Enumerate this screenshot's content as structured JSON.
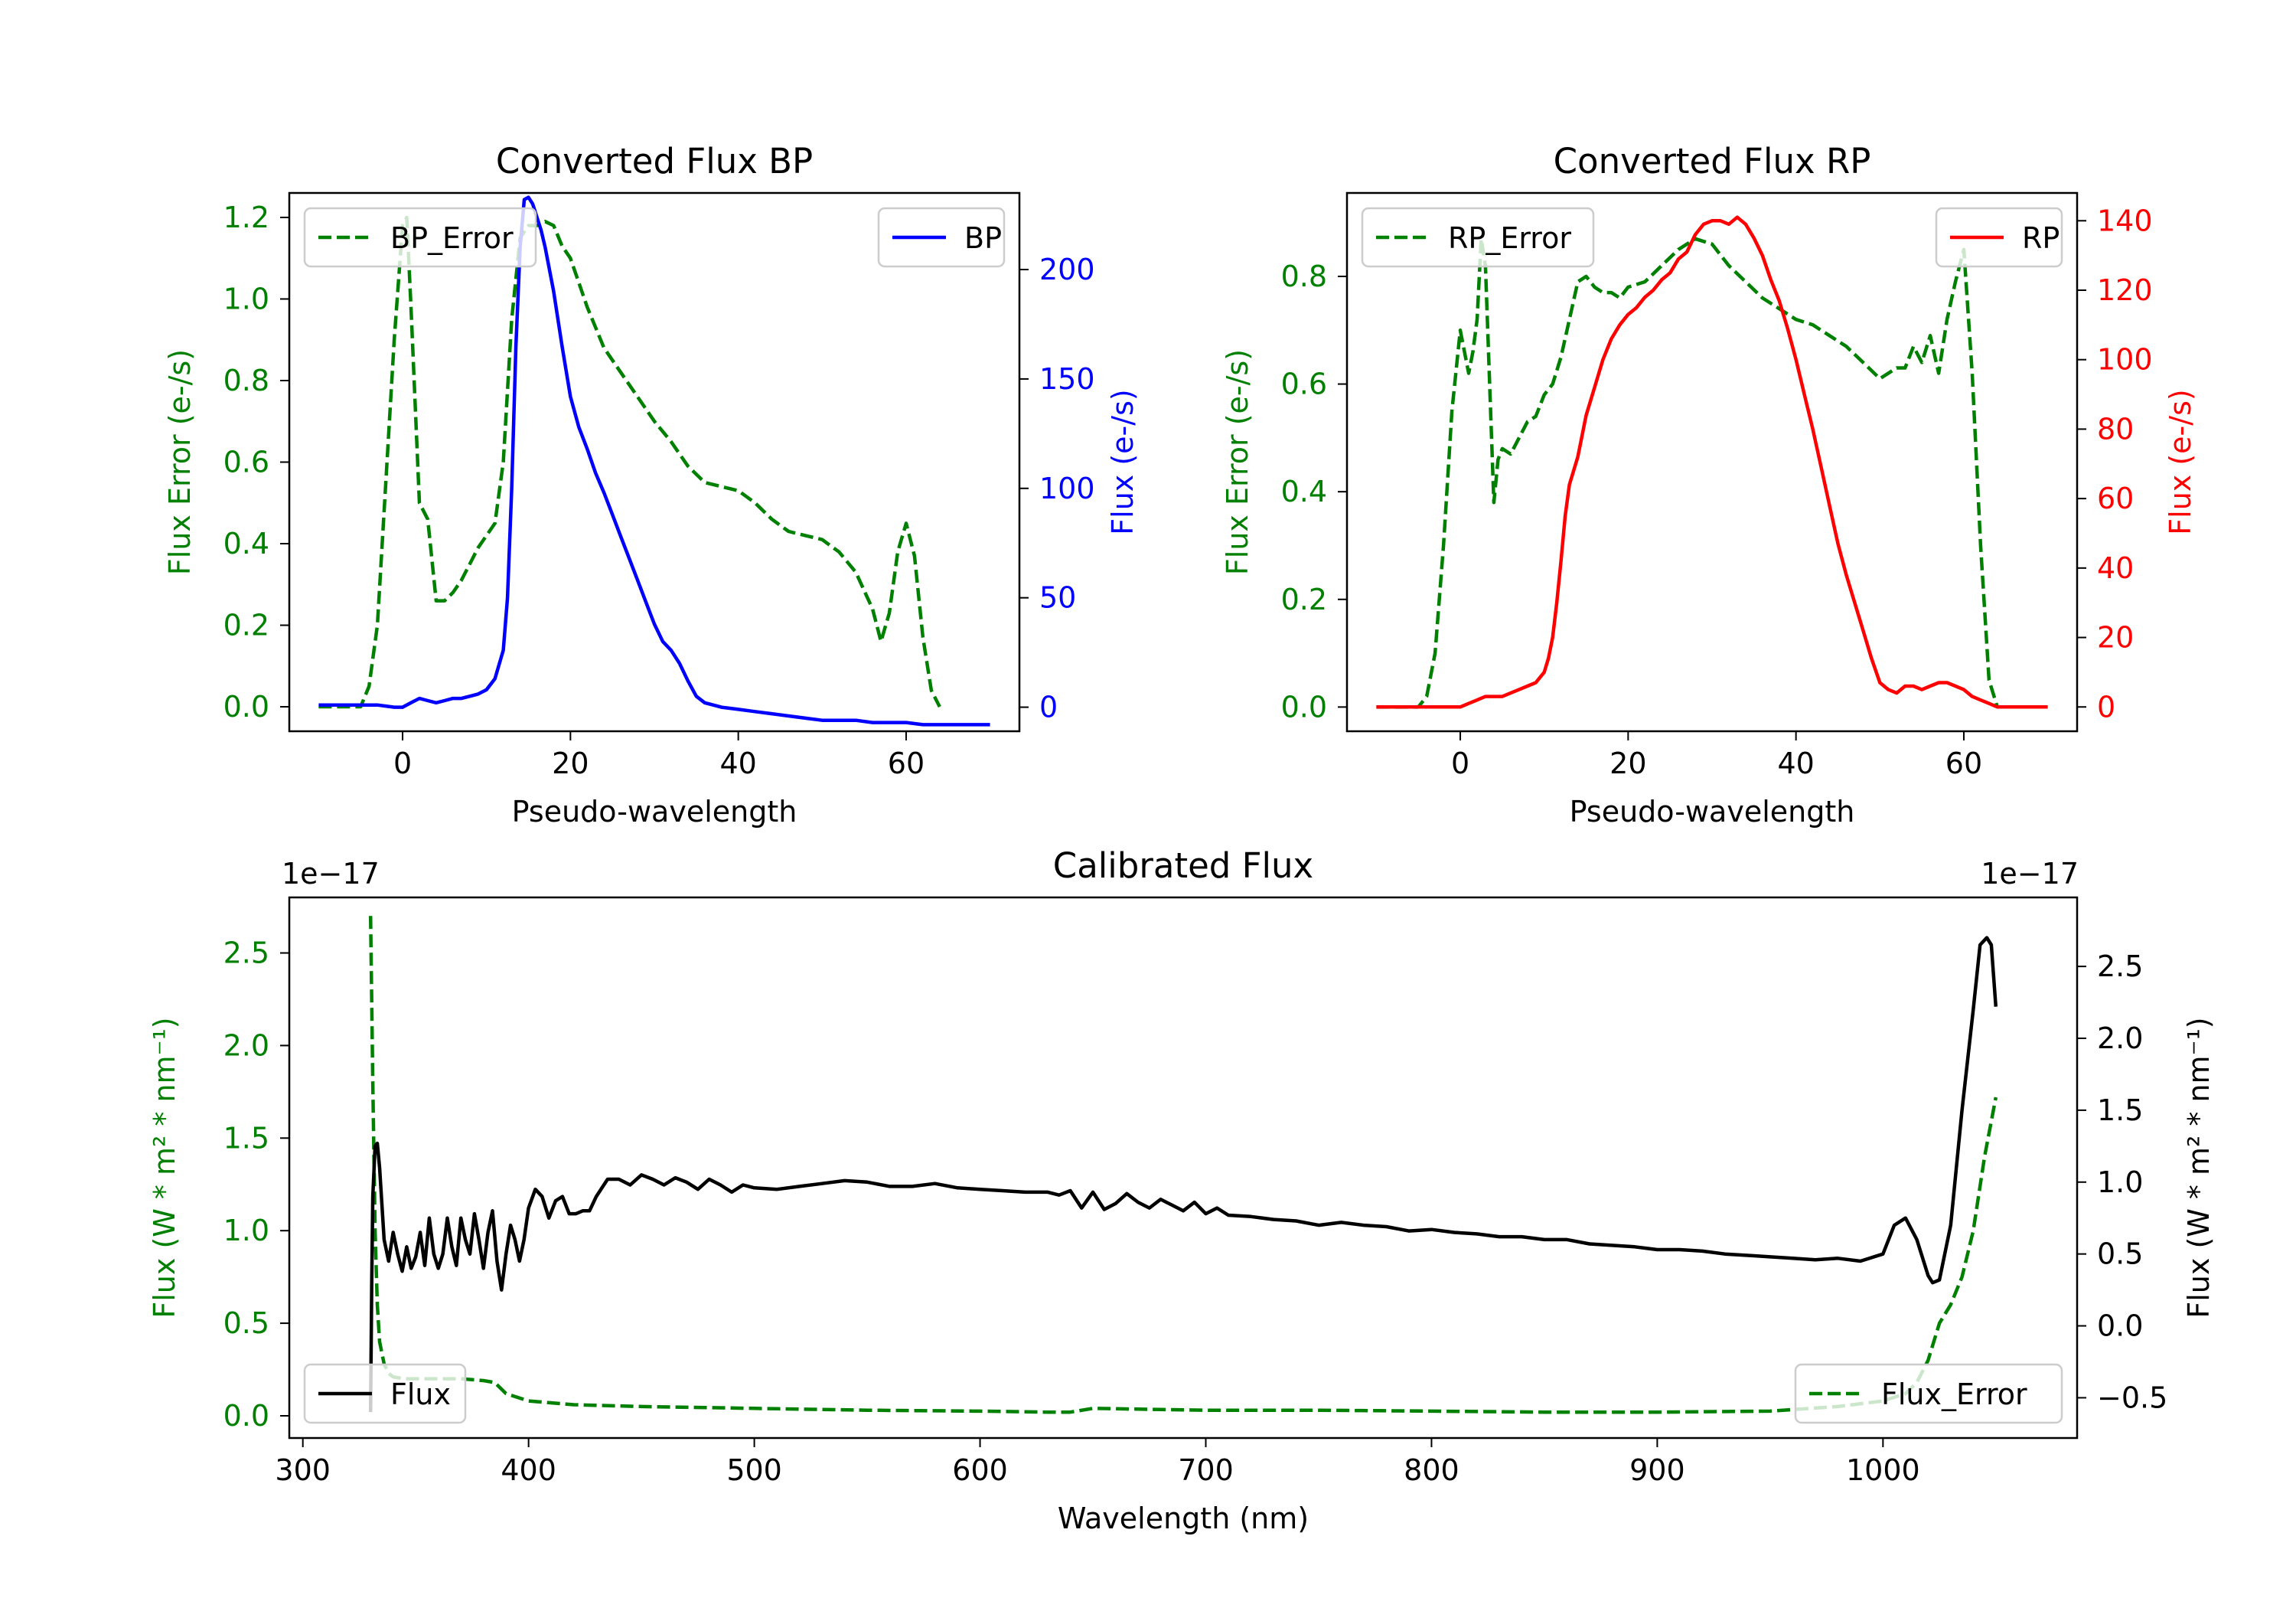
{
  "colors": {
    "green": "#008000",
    "blue": "#0000ff",
    "red": "#ff0000",
    "black": "#000000"
  },
  "chart_data": [
    {
      "id": "bp",
      "type": "line",
      "title": "Converted Flux BP",
      "xlabel": "Pseudo-wavelength",
      "xlim": [
        -13.5,
        73.5
      ],
      "xticks": [
        0,
        20,
        40,
        60
      ],
      "left_axis": {
        "label": "Flux Error (e-/s)",
        "color": "#008000",
        "ylim": [
          -0.06,
          1.26
        ],
        "ticks": [
          0.0,
          0.2,
          0.4,
          0.6,
          0.8,
          1.0,
          1.2
        ],
        "tick_labels": [
          "0.0",
          "0.2",
          "0.4",
          "0.6",
          "0.8",
          "1.0",
          "1.2"
        ]
      },
      "right_axis": {
        "label": "Flux (e-/s)",
        "color": "#0000ff",
        "ylim": [
          -11,
          235
        ],
        "ticks": [
          0,
          50,
          100,
          150,
          200
        ],
        "tick_labels": [
          "0",
          "50",
          "100",
          "150",
          "200"
        ]
      },
      "series": [
        {
          "name": "BP_Error",
          "axis": "left",
          "dashed": true,
          "color": "#008000",
          "x": [
            -10,
            -5,
            -4,
            -3,
            -2,
            -1,
            0,
            0.5,
            1,
            2,
            3,
            4,
            5,
            6,
            7,
            8,
            9,
            10,
            11,
            12,
            13,
            14,
            15,
            16,
            17,
            18,
            19,
            20,
            22,
            24,
            26,
            28,
            30,
            32,
            34,
            36,
            38,
            40,
            42,
            44,
            46,
            48,
            50,
            52,
            54,
            56,
            57,
            58,
            59,
            60,
            61,
            62,
            63,
            64
          ],
          "y": [
            0.0,
            0.0,
            0.05,
            0.2,
            0.55,
            0.9,
            1.18,
            1.2,
            0.98,
            0.5,
            0.46,
            0.26,
            0.26,
            0.28,
            0.31,
            0.35,
            0.39,
            0.42,
            0.45,
            0.6,
            0.95,
            1.15,
            1.18,
            1.18,
            1.19,
            1.18,
            1.13,
            1.1,
            0.98,
            0.88,
            0.82,
            0.76,
            0.7,
            0.65,
            0.59,
            0.55,
            0.54,
            0.53,
            0.5,
            0.46,
            0.43,
            0.42,
            0.41,
            0.38,
            0.33,
            0.24,
            0.16,
            0.23,
            0.38,
            0.45,
            0.37,
            0.17,
            0.04,
            0.0
          ]
        },
        {
          "name": "BP",
          "axis": "right",
          "dashed": false,
          "color": "#0000ff",
          "x": [
            -10,
            -6,
            -3,
            -1,
            0,
            1,
            2,
            3,
            4,
            5,
            6,
            7,
            8,
            9,
            10,
            11,
            12,
            12.5,
            13,
            13.5,
            14,
            14.5,
            15,
            15.5,
            16,
            16.5,
            17,
            18,
            19,
            20,
            21,
            22,
            23,
            24,
            25,
            26,
            27,
            28,
            29,
            30,
            31,
            32,
            33,
            34,
            35,
            36,
            37,
            38,
            40,
            42,
            44,
            46,
            48,
            50,
            52,
            54,
            56,
            58,
            60,
            62,
            64,
            66,
            68,
            70
          ],
          "y": [
            1,
            1,
            1,
            0,
            0,
            2,
            4,
            3,
            2,
            3,
            4,
            4,
            5,
            6,
            8,
            13,
            26,
            50,
            100,
            165,
            210,
            232,
            233,
            230,
            224,
            218,
            210,
            190,
            165,
            142,
            128,
            118,
            107,
            98,
            88,
            78,
            68,
            58,
            48,
            38,
            30,
            26,
            20,
            12,
            5,
            2,
            1,
            0,
            -1,
            -2,
            -3,
            -4,
            -5,
            -6,
            -6,
            -6,
            -7,
            -7,
            -7,
            -8,
            -8,
            -8,
            -8,
            -8
          ]
        }
      ],
      "legends": [
        {
          "position": "upper left",
          "entries": [
            "BP_Error"
          ]
        },
        {
          "position": "upper right",
          "entries": [
            "BP"
          ]
        }
      ]
    },
    {
      "id": "rp",
      "type": "line",
      "title": "Converted Flux RP",
      "xlabel": "Pseudo-wavelength",
      "xlim": [
        -13.5,
        73.5
      ],
      "xticks": [
        0,
        20,
        40,
        60
      ],
      "left_axis": {
        "label": "Flux Error (e-/s)",
        "color": "#008000",
        "ylim": [
          -0.045,
          0.955
        ],
        "ticks": [
          0.0,
          0.2,
          0.4,
          0.6,
          0.8
        ],
        "tick_labels": [
          "0.0",
          "0.2",
          "0.4",
          "0.6",
          "0.8"
        ]
      },
      "right_axis": {
        "label": "Flux (e-/s)",
        "color": "#ff0000",
        "ylim": [
          -7,
          148
        ],
        "ticks": [
          0,
          20,
          40,
          60,
          80,
          100,
          120,
          140
        ],
        "tick_labels": [
          "0",
          "20",
          "40",
          "60",
          "80",
          "100",
          "120",
          "140"
        ]
      },
      "series": [
        {
          "name": "RP_Error",
          "axis": "left",
          "dashed": true,
          "color": "#008000",
          "x": [
            -10,
            -5,
            -4,
            -3,
            -2,
            -1,
            0,
            0.5,
            1,
            1.5,
            2,
            2.5,
            3,
            3.5,
            4,
            4.5,
            5,
            6,
            7,
            8,
            9,
            10,
            11,
            12,
            13,
            14,
            15,
            16,
            17,
            18,
            19,
            20,
            22,
            24,
            26,
            28,
            30,
            32,
            34,
            36,
            38,
            40,
            42,
            44,
            46,
            48,
            50,
            52,
            53,
            54,
            55,
            56,
            57,
            58,
            59,
            60,
            61,
            62,
            63,
            64
          ],
          "y": [
            0.0,
            0.0,
            0.02,
            0.1,
            0.3,
            0.55,
            0.7,
            0.66,
            0.62,
            0.66,
            0.72,
            0.87,
            0.82,
            0.6,
            0.38,
            0.46,
            0.48,
            0.47,
            0.5,
            0.53,
            0.54,
            0.58,
            0.6,
            0.65,
            0.72,
            0.79,
            0.8,
            0.78,
            0.77,
            0.77,
            0.76,
            0.78,
            0.79,
            0.82,
            0.85,
            0.87,
            0.86,
            0.82,
            0.79,
            0.76,
            0.74,
            0.72,
            0.71,
            0.69,
            0.67,
            0.64,
            0.61,
            0.63,
            0.63,
            0.67,
            0.64,
            0.69,
            0.62,
            0.72,
            0.79,
            0.85,
            0.62,
            0.3,
            0.05,
            0.0
          ]
        },
        {
          "name": "RP",
          "axis": "right",
          "dashed": false,
          "color": "#ff0000",
          "x": [
            -10,
            -4,
            -2,
            0,
            1,
            2,
            3,
            4,
            5,
            6,
            7,
            8,
            9,
            10,
            10.5,
            11,
            11.5,
            12,
            12.5,
            13,
            14,
            15,
            16,
            17,
            18,
            19,
            20,
            21,
            22,
            23,
            24,
            25,
            26,
            27,
            28,
            29,
            30,
            31,
            32,
            33,
            34,
            35,
            36,
            37,
            38,
            39,
            40,
            41,
            42,
            43,
            44,
            45,
            46,
            47,
            48,
            49,
            50,
            51,
            52,
            53,
            54,
            55,
            56,
            57,
            58,
            59,
            60,
            61,
            62,
            63,
            64,
            66,
            70
          ],
          "y": [
            0,
            0,
            0,
            0,
            1,
            2,
            3,
            3,
            3,
            4,
            5,
            6,
            7,
            10,
            14,
            20,
            30,
            42,
            55,
            64,
            72,
            84,
            92,
            100,
            106,
            110,
            113,
            115,
            118,
            120,
            123,
            125,
            129,
            131,
            136,
            139,
            140,
            140,
            139,
            141,
            139,
            135,
            130,
            123,
            117,
            109,
            100,
            90,
            80,
            69,
            58,
            47,
            38,
            30,
            22,
            14,
            7,
            5,
            4,
            6,
            6,
            5,
            6,
            7,
            7,
            6,
            5,
            3,
            2,
            1,
            0,
            0,
            0
          ]
        }
      ],
      "legends": [
        {
          "position": "upper left",
          "entries": [
            "RP_Error"
          ]
        },
        {
          "position": "upper right",
          "entries": [
            "RP"
          ]
        }
      ]
    },
    {
      "id": "cal",
      "type": "line",
      "title": "Calibrated Flux",
      "xlabel": "Wavelength (nm)",
      "xlim": [
        294,
        1086
      ],
      "xticks": [
        300,
        400,
        500,
        600,
        700,
        800,
        900,
        1000
      ],
      "left_axis": {
        "label": "Flux (W * m² * nm⁻¹)",
        "color": "#008000",
        "multiplier": "1e−17",
        "ylim": [
          -0.12,
          2.8
        ],
        "ticks": [
          0.0,
          0.5,
          1.0,
          1.5,
          2.0,
          2.5
        ],
        "tick_labels": [
          "0.0",
          "0.5",
          "1.0",
          "1.5",
          "2.0",
          "2.5"
        ]
      },
      "right_axis": {
        "label": "Flux (W * m² * nm⁻¹)",
        "color": "#000000",
        "multiplier": "1e−17",
        "ylim": [
          -0.78,
          2.98
        ],
        "ticks": [
          -0.5,
          0.0,
          0.5,
          1.0,
          1.5,
          2.0,
          2.5
        ],
        "tick_labels": [
          "−0.5",
          "0.0",
          "0.5",
          "1.0",
          "1.5",
          "2.0",
          "2.5"
        ]
      },
      "series": [
        {
          "name": "Flux_Error",
          "axis": "left",
          "dashed": true,
          "color": "#008000",
          "x": [
            330,
            331,
            332,
            333,
            334,
            336,
            338,
            340,
            345,
            350,
            360,
            370,
            380,
            385,
            390,
            400,
            420,
            450,
            500,
            550,
            600,
            630,
            640,
            650,
            700,
            750,
            800,
            850,
            900,
            950,
            980,
            1000,
            1010,
            1015,
            1020,
            1025,
            1030,
            1035,
            1040,
            1045,
            1050
          ],
          "y": [
            2.7,
            1.8,
            1.0,
            0.6,
            0.4,
            0.28,
            0.23,
            0.21,
            0.2,
            0.2,
            0.2,
            0.2,
            0.19,
            0.18,
            0.12,
            0.08,
            0.06,
            0.05,
            0.04,
            0.03,
            0.025,
            0.02,
            0.02,
            0.04,
            0.03,
            0.03,
            0.025,
            0.02,
            0.02,
            0.025,
            0.05,
            0.08,
            0.12,
            0.18,
            0.3,
            0.5,
            0.6,
            0.75,
            1.0,
            1.4,
            1.72
          ]
        },
        {
          "name": "Flux",
          "axis": "right",
          "dashed": false,
          "color": "#000000",
          "x": [
            330,
            330.5,
            331,
            332,
            333,
            334,
            336,
            338,
            340,
            342,
            344,
            346,
            348,
            350,
            352,
            354,
            356,
            358,
            360,
            362,
            364,
            366,
            368,
            370,
            372,
            374,
            376,
            378,
            380,
            382,
            384,
            386,
            388,
            390,
            392,
            394,
            396,
            398,
            400,
            403,
            406,
            409,
            412,
            415,
            418,
            421,
            424,
            427,
            430,
            435,
            440,
            445,
            450,
            455,
            460,
            465,
            470,
            475,
            480,
            485,
            490,
            495,
            500,
            510,
            520,
            530,
            540,
            550,
            560,
            570,
            580,
            590,
            600,
            610,
            620,
            630,
            635,
            640,
            645,
            650,
            655,
            660,
            665,
            670,
            675,
            680,
            685,
            690,
            695,
            700,
            705,
            710,
            720,
            730,
            740,
            750,
            760,
            770,
            780,
            790,
            800,
            810,
            820,
            830,
            840,
            850,
            860,
            870,
            880,
            890,
            900,
            910,
            920,
            930,
            940,
            950,
            960,
            970,
            980,
            990,
            1000,
            1005,
            1010,
            1015,
            1020,
            1022,
            1025,
            1030,
            1035,
            1040,
            1043,
            1046,
            1048,
            1050
          ],
          "y": [
            -0.6,
            0.3,
            0.9,
            1.25,
            1.27,
            1.1,
            0.6,
            0.45,
            0.65,
            0.5,
            0.38,
            0.55,
            0.4,
            0.48,
            0.65,
            0.42,
            0.75,
            0.5,
            0.4,
            0.5,
            0.75,
            0.55,
            0.42,
            0.75,
            0.6,
            0.5,
            0.78,
            0.6,
            0.4,
            0.65,
            0.8,
            0.45,
            0.25,
            0.5,
            0.7,
            0.6,
            0.45,
            0.6,
            0.82,
            0.95,
            0.9,
            0.75,
            0.87,
            0.9,
            0.78,
            0.78,
            0.8,
            0.8,
            0.9,
            1.02,
            1.02,
            0.98,
            1.05,
            1.02,
            0.98,
            1.03,
            1.0,
            0.95,
            1.02,
            0.98,
            0.93,
            0.98,
            0.96,
            0.95,
            0.97,
            0.99,
            1.01,
            1.0,
            0.97,
            0.97,
            0.99,
            0.96,
            0.95,
            0.94,
            0.93,
            0.93,
            0.91,
            0.94,
            0.82,
            0.93,
            0.81,
            0.85,
            0.92,
            0.86,
            0.82,
            0.88,
            0.84,
            0.8,
            0.86,
            0.78,
            0.82,
            0.77,
            0.76,
            0.74,
            0.73,
            0.7,
            0.72,
            0.7,
            0.69,
            0.66,
            0.67,
            0.65,
            0.64,
            0.62,
            0.62,
            0.6,
            0.6,
            0.57,
            0.56,
            0.55,
            0.53,
            0.53,
            0.52,
            0.5,
            0.49,
            0.48,
            0.47,
            0.46,
            0.47,
            0.45,
            0.5,
            0.7,
            0.75,
            0.6,
            0.35,
            0.3,
            0.32,
            0.7,
            1.5,
            2.2,
            2.65,
            2.7,
            2.65,
            2.22
          ]
        }
      ],
      "legends": [
        {
          "position": "lower left",
          "entries": [
            "Flux"
          ]
        },
        {
          "position": "lower right",
          "entries": [
            "Flux_Error"
          ]
        }
      ]
    }
  ]
}
